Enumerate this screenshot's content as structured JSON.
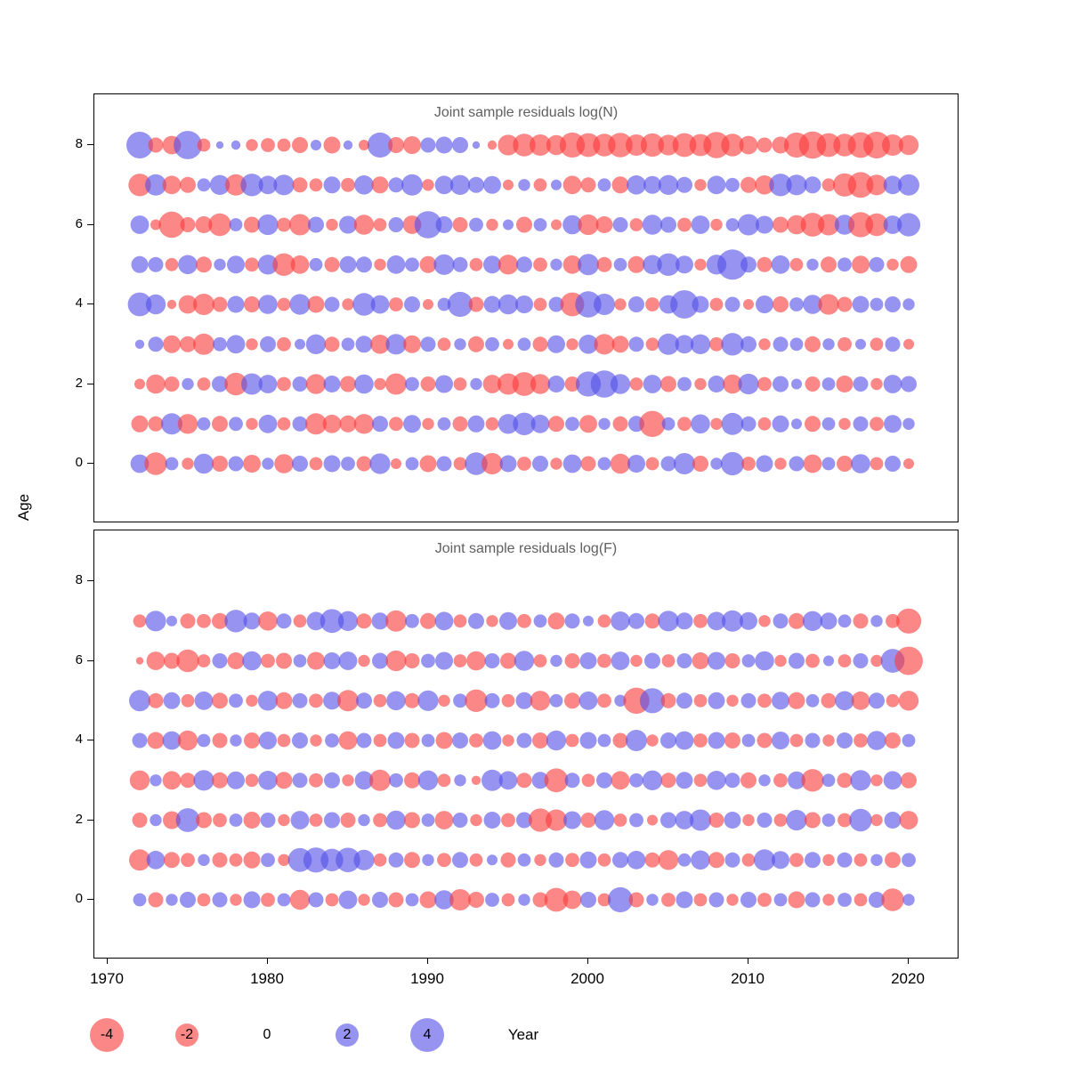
{
  "figure": {
    "kind": "residual bubble plot",
    "panels": 2
  },
  "axes": {
    "ylabel": "Age",
    "xlabel": "Year",
    "x_ticks": [
      1970,
      1980,
      1990,
      2000,
      2010,
      2020
    ],
    "y_ticks": [
      0,
      2,
      4,
      6,
      8
    ]
  },
  "legend": {
    "values": [
      -4,
      -2,
      0,
      2,
      4
    ],
    "labels": [
      "-4",
      "-2",
      "0",
      "2",
      "4"
    ]
  },
  "colors": {
    "negative": "rgba(250,62,62,0.62)",
    "positive": "rgba(86,80,232,0.62)",
    "title_gray": "#5f5f5f"
  },
  "chart_data": [
    {
      "type": "scatter",
      "subtype": "bubble-residuals",
      "title": "Joint sample residuals log(N)",
      "xlabel": "Year",
      "ylabel": "Age",
      "x_start": 1972,
      "x_range": [
        1970,
        2022
      ],
      "y_range": [
        0,
        8
      ],
      "size_rule": "radius proportional to sqrt(|residual|); red = negative, blue = positive",
      "series": [
        {
          "age": 8,
          "values": [
            2.5,
            -0.8,
            -1.2,
            2.8,
            -0.6,
            0.2,
            0.3,
            -0.5,
            -0.7,
            -0.6,
            -0.9,
            0.4,
            -1.0,
            0.3,
            -0.4,
            2.2,
            -0.9,
            -1.1,
            0.8,
            1.0,
            0.9,
            0.2,
            -0.3,
            -1.5,
            -1.8,
            -1.6,
            -1.4,
            -2.2,
            -2.0,
            -1.8,
            -2.1,
            -1.6,
            -1.9,
            -1.5,
            -2.0,
            -1.7,
            -2.4,
            -1.8,
            -1.2,
            -0.8,
            -1.0,
            -2.2,
            -2.6,
            -2.0,
            -1.8,
            -2.3,
            -2.5,
            -1.6,
            -1.4
          ]
        },
        {
          "age": 7,
          "values": [
            -1.8,
            1.6,
            -1.2,
            -0.9,
            0.6,
            1.4,
            -1.6,
            1.8,
            1.2,
            1.5,
            -0.8,
            -0.6,
            1.0,
            -0.7,
            1.3,
            -1.0,
            0.8,
            1.6,
            -0.5,
            1.2,
            1.4,
            0.9,
            1.1,
            -0.4,
            0.5,
            -0.6,
            0.4,
            -1.2,
            -0.8,
            0.6,
            -1.0,
            1.3,
            1.1,
            1.4,
            0.9,
            -0.5,
            1.2,
            0.7,
            -0.9,
            -1.3,
            1.8,
            1.5,
            1.0,
            -0.6,
            -1.9,
            -2.3,
            -1.5,
            1.2,
            1.6
          ]
        },
        {
          "age": 6,
          "values": [
            1.2,
            -0.4,
            -2.4,
            -0.8,
            -1.0,
            -1.8,
            0.6,
            -0.9,
            1.5,
            -0.7,
            -1.6,
            0.9,
            -0.5,
            1.1,
            -1.4,
            -0.6,
            0.8,
            -1.2,
            2.6,
            1.0,
            -0.8,
            0.7,
            -0.5,
            0.4,
            -0.9,
            0.6,
            -0.4,
            1.3,
            -1.5,
            -1.0,
            0.8,
            -0.6,
            1.4,
            0.9,
            -0.7,
            1.2,
            -0.5,
            0.6,
            1.6,
            1.1,
            -0.9,
            -1.3,
            -2.0,
            -1.6,
            1.4,
            -2.2,
            -1.8,
            1.2,
            1.9
          ]
        },
        {
          "age": 5,
          "values": [
            1.0,
            0.8,
            -0.6,
            1.3,
            -0.9,
            0.5,
            1.1,
            -0.7,
            1.4,
            -1.8,
            -1.2,
            0.6,
            -0.8,
            1.0,
            0.9,
            -0.5,
            1.2,
            0.7,
            -1.0,
            1.5,
            0.8,
            -0.6,
            1.1,
            -1.4,
            0.9,
            -0.7,
            0.5,
            -1.2,
            1.6,
            -0.8,
            0.6,
            -1.0,
            1.3,
            1.8,
            1.1,
            -0.5,
            1.4,
            3.2,
            0.9,
            -0.8,
            1.2,
            -0.6,
            0.5,
            -0.9,
            0.7,
            -1.1,
            0.8,
            -0.5,
            -1.0
          ]
        },
        {
          "age": 4,
          "values": [
            2.0,
            1.4,
            -0.3,
            -1.2,
            -1.6,
            -0.8,
            1.0,
            -0.9,
            1.3,
            -0.6,
            1.5,
            -1.0,
            0.8,
            -0.5,
            1.8,
            1.2,
            -0.7,
            0.9,
            -0.4,
            0.6,
            2.2,
            -0.8,
            1.0,
            1.4,
            1.1,
            -0.6,
            0.8,
            -2.0,
            2.4,
            1.6,
            -0.5,
            0.9,
            -0.7,
            1.2,
            2.8,
            1.0,
            -0.6,
            0.8,
            -0.4,
            1.1,
            -0.9,
            0.7,
            1.3,
            -1.5,
            -0.8,
            1.0,
            0.6,
            0.9,
            0.5
          ]
        },
        {
          "age": 3,
          "values": [
            0.3,
            0.8,
            -1.1,
            -0.9,
            -1.6,
            0.7,
            1.2,
            -0.5,
            0.9,
            -0.7,
            0.4,
            1.4,
            -0.8,
            0.6,
            1.0,
            -1.3,
            1.5,
            -1.1,
            0.8,
            -0.6,
            0.5,
            -0.9,
            0.7,
            -0.4,
            0.6,
            -0.8,
            1.1,
            -0.5,
            1.3,
            -1.5,
            -1.0,
            0.8,
            -0.6,
            1.6,
            1.2,
            1.4,
            -0.7,
            1.8,
            0.9,
            -0.5,
            0.8,
            0.6,
            -0.9,
            0.5,
            -0.7,
            0.4,
            -0.6,
            0.8,
            -0.4
          ]
        },
        {
          "age": 2,
          "values": [
            -0.4,
            -1.3,
            -0.8,
            0.5,
            -0.6,
            0.9,
            -1.8,
            1.6,
            1.2,
            -0.7,
            0.8,
            -1.4,
            1.0,
            -0.9,
            1.3,
            -0.5,
            -1.6,
            0.7,
            -0.8,
            1.1,
            -0.6,
            0.5,
            -1.2,
            -1.6,
            -2.0,
            -1.4,
            1.0,
            -0.8,
            2.2,
            2.6,
            1.4,
            -0.6,
            1.2,
            -0.9,
            0.7,
            -0.5,
            1.0,
            -1.3,
            1.5,
            -0.7,
            0.9,
            0.4,
            -0.8,
            0.6,
            -1.0,
            0.8,
            -0.5,
            1.2,
            0.9
          ]
        },
        {
          "age": 1,
          "values": [
            -1.0,
            -0.8,
            1.6,
            -1.4,
            0.6,
            -0.9,
            0.7,
            -0.5,
            1.2,
            -0.6,
            0.8,
            -1.6,
            -1.2,
            -1.0,
            -1.4,
            0.9,
            -0.7,
            1.1,
            -0.5,
            0.6,
            -0.8,
            1.0,
            -0.6,
            1.4,
            1.8,
            1.2,
            -0.9,
            0.7,
            -1.1,
            0.5,
            -0.8,
            0.9,
            -2.4,
            0.6,
            -0.7,
            1.3,
            -0.5,
            1.7,
            0.8,
            -0.6,
            1.0,
            0.4,
            -0.9,
            0.6,
            -0.5,
            0.8,
            -0.7,
            1.1,
            0.5
          ]
        },
        {
          "age": 0,
          "values": [
            1.2,
            -1.8,
            0.6,
            -0.5,
            1.4,
            -0.9,
            0.8,
            -1.1,
            0.5,
            -1.3,
            0.9,
            -0.6,
            1.0,
            0.7,
            -0.8,
            1.5,
            -0.4,
            0.6,
            -1.0,
            0.8,
            -0.6,
            1.8,
            -1.6,
            1.0,
            -0.7,
            0.9,
            -0.5,
            1.2,
            -0.8,
            0.6,
            -1.4,
            1.1,
            -0.6,
            0.8,
            1.6,
            -0.9,
            0.5,
            1.9,
            -0.7,
            1.0,
            -0.5,
            0.8,
            -1.2,
            0.6,
            -0.9,
            1.3,
            -0.6,
            0.9,
            -0.4
          ]
        }
      ]
    },
    {
      "type": "scatter",
      "subtype": "bubble-residuals",
      "title": "Joint sample residuals log(F)",
      "xlabel": "Year",
      "ylabel": "Age",
      "x_start": 1972,
      "x_range": [
        1970,
        2022
      ],
      "y_range": [
        0,
        8
      ],
      "size_rule": "radius proportional to sqrt(|residual|); red = negative, blue = positive",
      "series": [
        {
          "age": 7,
          "values": [
            -0.6,
            1.5,
            0.4,
            -0.8,
            -0.7,
            -0.9,
            1.8,
            1.0,
            -1.3,
            0.8,
            -0.6,
            1.2,
            2.0,
            1.4,
            -0.8,
            1.0,
            -1.6,
            0.7,
            -0.9,
            1.2,
            -0.6,
            0.9,
            -0.5,
            1.1,
            -0.7,
            0.6,
            -1.0,
            0.8,
            0.4,
            -0.6,
            1.3,
            0.9,
            -0.8,
            1.5,
            1.0,
            -0.7,
            1.2,
            1.6,
            1.1,
            -0.5,
            0.8,
            -0.9,
            1.4,
            1.0,
            0.6,
            -0.8,
            0.5,
            -0.7,
            -2.2
          ]
        },
        {
          "age": 6,
          "values": [
            -0.2,
            -1.2,
            -0.9,
            -1.8,
            -0.6,
            0.8,
            -1.0,
            1.3,
            -0.7,
            -0.9,
            0.6,
            -1.1,
            1.0,
            1.2,
            -0.5,
            0.9,
            -1.5,
            -0.8,
            0.7,
            1.1,
            -0.6,
            -1.3,
            0.8,
            -0.9,
            1.4,
            -0.6,
            0.5,
            -0.8,
            1.0,
            -0.7,
            1.2,
            -0.5,
            0.9,
            -0.6,
            0.8,
            -1.0,
            1.1,
            -0.8,
            0.6,
            1.3,
            -0.5,
            0.9,
            -0.7,
            0.4,
            -0.6,
            0.8,
            -0.5,
            2.0,
            -2.8
          ]
        },
        {
          "age": 5,
          "values": [
            1.6,
            -0.8,
            1.0,
            -0.6,
            1.2,
            -0.9,
            0.7,
            -0.5,
            1.4,
            -1.0,
            0.8,
            -0.7,
            1.1,
            -1.6,
            0.9,
            -0.6,
            1.3,
            -0.8,
            1.5,
            -0.5,
            0.7,
            -1.8,
            0.8,
            -0.6,
            1.0,
            -1.4,
            0.6,
            -0.9,
            1.2,
            -0.7,
            0.5,
            -2.4,
            2.2,
            -0.8,
            0.9,
            -0.6,
            1.0,
            -0.5,
            0.8,
            -0.7,
            1.1,
            -1.0,
            0.6,
            -0.8,
            1.3,
            -1.2,
            0.9,
            -0.6,
            -1.4
          ]
        },
        {
          "age": 4,
          "values": [
            0.8,
            -1.0,
            1.2,
            -1.4,
            0.6,
            -0.8,
            0.5,
            -0.9,
            1.1,
            -0.6,
            0.9,
            -0.5,
            0.7,
            -1.2,
            0.8,
            -0.6,
            1.0,
            -0.8,
            0.6,
            -1.0,
            0.9,
            -0.7,
            1.2,
            -0.5,
            0.8,
            -0.9,
            1.4,
            -0.6,
            1.0,
            0.6,
            -0.8,
            1.6,
            -0.5,
            0.9,
            1.2,
            -0.7,
            1.0,
            -0.9,
            0.6,
            -0.8,
            1.1,
            -0.6,
            0.8,
            -0.5,
            0.9,
            -0.7,
            1.3,
            -0.9,
            0.6
          ]
        },
        {
          "age": 3,
          "values": [
            -1.4,
            0.5,
            -1.2,
            -0.8,
            1.5,
            -0.9,
            1.1,
            -0.6,
            1.3,
            -1.0,
            0.8,
            -0.7,
            0.9,
            -0.5,
            1.2,
            -1.6,
            0.7,
            -0.9,
            1.4,
            -0.6,
            0.5,
            -0.3,
            1.6,
            1.2,
            -0.8,
            1.0,
            -2.0,
            0.8,
            -0.6,
            0.9,
            -1.2,
            0.7,
            1.4,
            -0.8,
            1.0,
            -0.6,
            1.3,
            0.8,
            -0.9,
            0.5,
            -0.7,
            1.1,
            -1.8,
            0.6,
            -0.8,
            1.5,
            -0.5,
            1.2,
            -0.9
          ]
        },
        {
          "age": 2,
          "values": [
            -0.8,
            0.5,
            -1.1,
            2.0,
            -0.9,
            -0.7,
            0.6,
            -1.0,
            0.8,
            -0.5,
            1.2,
            -0.6,
            0.9,
            -0.8,
            0.5,
            -0.7,
            1.3,
            -0.9,
            0.6,
            -1.2,
            0.8,
            -0.5,
            1.0,
            -0.7,
            0.9,
            -1.9,
            -1.6,
            1.1,
            -0.8,
            1.4,
            -0.6,
            0.7,
            -0.4,
            0.9,
            1.2,
            1.6,
            -0.8,
            1.0,
            -0.5,
            0.8,
            -0.6,
            1.5,
            -0.9,
            0.6,
            -0.7,
            1.8,
            -0.5,
            1.0,
            -1.2
          ]
        },
        {
          "age": 1,
          "values": [
            -1.6,
            1.2,
            -0.9,
            -0.7,
            0.5,
            -0.8,
            -0.6,
            -1.0,
            0.7,
            -0.5,
            2.0,
            2.2,
            1.8,
            2.1,
            1.5,
            -0.6,
            0.8,
            -0.9,
            0.5,
            -0.7,
            0.9,
            -0.6,
            0.4,
            -0.8,
            0.6,
            -0.5,
            0.8,
            -0.7,
            1.0,
            -0.6,
            0.9,
            1.2,
            -0.8,
            -1.4,
            0.6,
            1.3,
            -0.9,
            0.8,
            -0.6,
            1.6,
            1.1,
            -0.7,
            0.9,
            -0.5,
            0.8,
            -0.6,
            0.5,
            -0.9,
            0.7
          ]
        },
        {
          "age": 0,
          "values": [
            0.6,
            -0.8,
            0.5,
            0.9,
            -0.6,
            0.8,
            -0.5,
            1.0,
            -0.7,
            0.6,
            -1.4,
            0.8,
            -0.6,
            1.2,
            -0.5,
            0.9,
            -0.8,
            0.6,
            -1.0,
            1.3,
            -1.6,
            -0.9,
            0.7,
            -0.6,
            0.5,
            -0.8,
            -2.0,
            -1.2,
            0.9,
            -0.6,
            2.2,
            -0.8,
            0.5,
            -0.7,
            1.0,
            -0.6,
            0.8,
            -0.5,
            0.9,
            -0.7,
            0.6,
            -1.0,
            0.8,
            -0.5,
            0.7,
            -0.6,
            0.9,
            -1.8,
            0.5
          ]
        }
      ]
    }
  ]
}
